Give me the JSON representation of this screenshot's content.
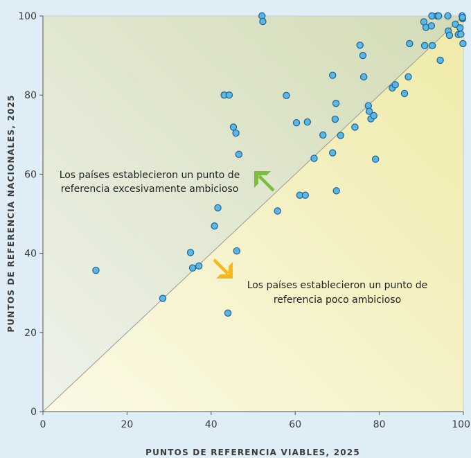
{
  "chart_data": {
    "type": "scatter",
    "xlabel": "PUNTOS DE REFERENCIA VIABLES, 2025",
    "ylabel": "PUNTOS DE REFERENCIA NACIONALES, 2025",
    "xlim": [
      0,
      100
    ],
    "ylim": [
      0,
      100
    ],
    "xticks": [
      0,
      20,
      40,
      60,
      80,
      100
    ],
    "yticks": [
      0,
      20,
      40,
      60,
      80,
      100
    ],
    "grid": false,
    "diagonal_reference_line": true,
    "annotations": {
      "above": [
        "Los países establecieron un punto de",
        "referencia excesivamente ambicioso"
      ],
      "below": [
        "Los países establecieron un punto de",
        "referencia poco ambicioso"
      ]
    },
    "colors": {
      "background": "#dfeef6",
      "region_above": "#dbe1c8",
      "region_below": "#f2f0c3",
      "point_fill": "#59b8e4",
      "point_stroke": "#1f5f94",
      "arrow_above": "#7cbe3c",
      "arrow_below": "#f6b718"
    },
    "points": [
      {
        "x": 12.6,
        "y": 35.7
      },
      {
        "x": 28.5,
        "y": 28.6
      },
      {
        "x": 35.1,
        "y": 40.2
      },
      {
        "x": 35.6,
        "y": 36.3
      },
      {
        "x": 37.1,
        "y": 36.8
      },
      {
        "x": 40.8,
        "y": 46.9
      },
      {
        "x": 41.6,
        "y": 51.5
      },
      {
        "x": 43.1,
        "y": 80.0
      },
      {
        "x": 44.3,
        "y": 80.0
      },
      {
        "x": 44.0,
        "y": 24.9
      },
      {
        "x": 45.3,
        "y": 71.9
      },
      {
        "x": 45.9,
        "y": 70.4
      },
      {
        "x": 46.6,
        "y": 65.0
      },
      {
        "x": 46.1,
        "y": 40.6
      },
      {
        "x": 52.1,
        "y": 100.0
      },
      {
        "x": 52.3,
        "y": 98.6
      },
      {
        "x": 55.8,
        "y": 50.7
      },
      {
        "x": 57.9,
        "y": 79.9
      },
      {
        "x": 60.3,
        "y": 73.0
      },
      {
        "x": 61.1,
        "y": 54.7
      },
      {
        "x": 62.4,
        "y": 54.7
      },
      {
        "x": 62.9,
        "y": 73.2
      },
      {
        "x": 64.5,
        "y": 64.0
      },
      {
        "x": 66.6,
        "y": 69.9
      },
      {
        "x": 68.9,
        "y": 85.0
      },
      {
        "x": 68.9,
        "y": 65.4
      },
      {
        "x": 69.5,
        "y": 73.9
      },
      {
        "x": 69.7,
        "y": 77.9
      },
      {
        "x": 69.8,
        "y": 55.8
      },
      {
        "x": 70.8,
        "y": 69.8
      },
      {
        "x": 74.2,
        "y": 71.9
      },
      {
        "x": 75.4,
        "y": 92.6
      },
      {
        "x": 76.1,
        "y": 90.0
      },
      {
        "x": 76.3,
        "y": 84.6
      },
      {
        "x": 77.4,
        "y": 77.3
      },
      {
        "x": 77.6,
        "y": 75.9
      },
      {
        "x": 78.0,
        "y": 74.0
      },
      {
        "x": 78.7,
        "y": 74.8
      },
      {
        "x": 79.1,
        "y": 63.8
      },
      {
        "x": 83.1,
        "y": 81.8
      },
      {
        "x": 83.8,
        "y": 82.6
      },
      {
        "x": 86.0,
        "y": 80.4
      },
      {
        "x": 86.9,
        "y": 84.6
      },
      {
        "x": 87.2,
        "y": 93.0
      },
      {
        "x": 90.6,
        "y": 98.5
      },
      {
        "x": 90.8,
        "y": 92.5
      },
      {
        "x": 91.1,
        "y": 97.1
      },
      {
        "x": 92.4,
        "y": 97.5
      },
      {
        "x": 92.5,
        "y": 100.0
      },
      {
        "x": 92.6,
        "y": 92.5
      },
      {
        "x": 93.8,
        "y": 100.0
      },
      {
        "x": 94.1,
        "y": 100.0
      },
      {
        "x": 94.5,
        "y": 88.8
      },
      {
        "x": 96.3,
        "y": 100.0
      },
      {
        "x": 96.4,
        "y": 96.2
      },
      {
        "x": 96.7,
        "y": 95.1
      },
      {
        "x": 98.1,
        "y": 97.9
      },
      {
        "x": 98.8,
        "y": 95.3
      },
      {
        "x": 99.2,
        "y": 97.0
      },
      {
        "x": 99.4,
        "y": 95.4
      },
      {
        "x": 99.7,
        "y": 100.0
      },
      {
        "x": 99.8,
        "y": 99.3
      },
      {
        "x": 99.8,
        "y": 99.6
      },
      {
        "x": 99.9,
        "y": 93.0
      }
    ]
  }
}
